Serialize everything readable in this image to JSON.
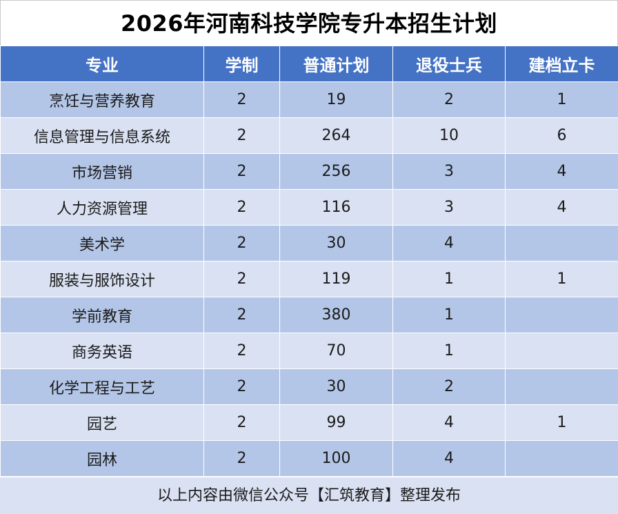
{
  "title": "2026年河南科技学院专升本招生计划",
  "table": {
    "headers": [
      "专业",
      "学制",
      "普通计划",
      "退役士兵",
      "建档立卡"
    ],
    "rows": [
      [
        "烹饪与营养教育",
        "2",
        "19",
        "2",
        "1"
      ],
      [
        "信息管理与信息系统",
        "2",
        "264",
        "10",
        "6"
      ],
      [
        "市场营销",
        "2",
        "256",
        "3",
        "4"
      ],
      [
        "人力资源管理",
        "2",
        "116",
        "3",
        "4"
      ],
      [
        "美术学",
        "2",
        "30",
        "4",
        ""
      ],
      [
        "服装与服饰设计",
        "2",
        "119",
        "1",
        "1"
      ],
      [
        "学前教育",
        "2",
        "380",
        "1",
        ""
      ],
      [
        "商务英语",
        "2",
        "70",
        "1",
        ""
      ],
      [
        "化学工程与工艺",
        "2",
        "30",
        "2",
        ""
      ],
      [
        "园艺",
        "2",
        "99",
        "4",
        "1"
      ],
      [
        "园林",
        "2",
        "100",
        "4",
        ""
      ]
    ]
  },
  "footer": "以上内容由微信公众号【汇筑教育】整理发布",
  "colors": {
    "header_bg": "#4472c4",
    "row_dark": "#b4c6e7",
    "row_light": "#d9e1f2"
  }
}
